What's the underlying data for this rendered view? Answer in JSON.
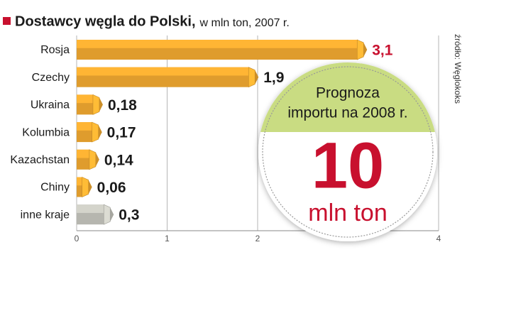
{
  "chart_data": {
    "type": "bar",
    "orientation": "horizontal",
    "title": "Dostawcy węgla do Polski,",
    "subtitle": "w mln ton, 2007 r.",
    "source": "źródło: Węglokoks",
    "categories": [
      "Rosja",
      "Czechy",
      "Ukraina",
      "Kolumbia",
      "Kazachstan",
      "Chiny",
      "inne kraje"
    ],
    "values": [
      3.1,
      1.9,
      0.18,
      0.17,
      0.14,
      0.06,
      0.3
    ],
    "value_labels": [
      "3,1",
      "1,9",
      "0,18",
      "0,17",
      "0,14",
      "0,06",
      "0,3"
    ],
    "colors": [
      "#f0a830",
      "#f0a830",
      "#f0a830",
      "#f0a830",
      "#f0a830",
      "#f0a830",
      "#c4c4bc"
    ],
    "value_label_colors": [
      "#c8102e",
      "#1a1a1a",
      "#1a1a1a",
      "#1a1a1a",
      "#1a1a1a",
      "#1a1a1a",
      "#1a1a1a"
    ],
    "xlim": [
      0,
      4
    ],
    "xticks": [
      0,
      1,
      2,
      4
    ],
    "grid": true,
    "callout": {
      "title_lines": [
        "Prognoza",
        "importu na 2008 r."
      ],
      "value": 10,
      "unit": "mln ton"
    }
  }
}
